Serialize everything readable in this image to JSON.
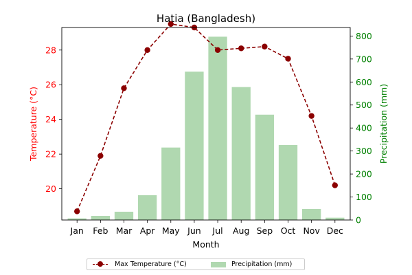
{
  "chart_data": {
    "type": "bar+line",
    "title": "Hatia (Bangladesh)",
    "xlabel": "Month",
    "categories": [
      "Jan",
      "Feb",
      "Mar",
      "Apr",
      "May",
      "Jun",
      "Jul",
      "Aug",
      "Sep",
      "Oct",
      "Nov",
      "Dec"
    ],
    "series": [
      {
        "name": "Max Temperature (°C)",
        "type": "line",
        "axis": "left",
        "values": [
          18.7,
          21.9,
          25.8,
          28.0,
          29.5,
          29.3,
          28.0,
          28.1,
          28.2,
          27.5,
          24.2,
          20.2
        ],
        "color": "#8b0000",
        "linestyle": "dashed",
        "marker": "circle"
      },
      {
        "name": "Precipitation (mm)",
        "type": "bar",
        "axis": "right",
        "values": [
          7,
          18,
          36,
          108,
          315,
          645,
          797,
          578,
          458,
          326,
          48,
          10
        ],
        "color": "#b0d8b0"
      }
    ],
    "yleft": {
      "label": "Temperature (°C)",
      "color": "#ff0000",
      "ticks": [
        "20",
        "22",
        "24",
        "26",
        "28"
      ],
      "range": [
        18.2,
        29.3
      ]
    },
    "yright": {
      "label": "Precipitation (mm)",
      "color": "#008000",
      "ticks": [
        "0",
        "100",
        "200",
        "300",
        "400",
        "500",
        "600",
        "700",
        "800"
      ],
      "range": [
        0,
        837
      ]
    },
    "legend": {
      "placement": "bottom-center",
      "columns": 2
    },
    "grid": false
  }
}
